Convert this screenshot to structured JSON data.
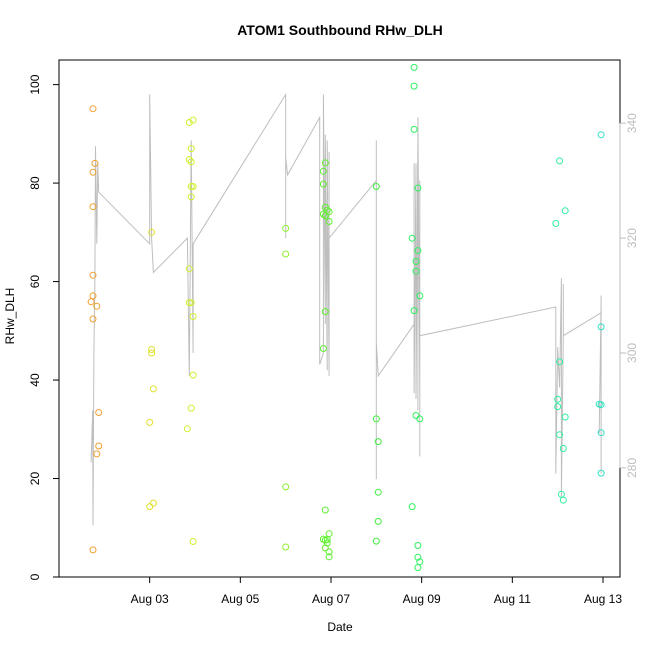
{
  "chart_data": {
    "type": "scatter",
    "title": "ATOM1 Southbound RHw_DLH",
    "xlabel": "Date",
    "ylabel": "RHw_DLH",
    "xlim": [
      "2025-08-01T00:00",
      "2025-08-13T09:00"
    ],
    "xticks": [
      {
        "x": "2025-08-03T00:00",
        "label": "Aug 03"
      },
      {
        "x": "2025-08-05T00:00",
        "label": "Aug 05"
      },
      {
        "x": "2025-08-07T00:00",
        "label": "Aug 07"
      },
      {
        "x": "2025-08-09T00:00",
        "label": "Aug 09"
      },
      {
        "x": "2025-08-11T00:00",
        "label": "Aug 11"
      },
      {
        "x": "2025-08-13T00:00",
        "label": "Aug 13"
      }
    ],
    "ylim": [
      0,
      105
    ],
    "yticks": [
      0,
      20,
      40,
      60,
      80,
      100
    ],
    "y2lim": [
      261,
      351
    ],
    "y2ticks": [
      280,
      300,
      320,
      340
    ],
    "grid": false,
    "legend": "none",
    "series": [
      {
        "color": "#f0a030",
        "points": [
          [
            "2025-08-01T18:00",
            95.1
          ],
          [
            "2025-08-01T18:00",
            82.2
          ],
          [
            "2025-08-01T19:00",
            84
          ],
          [
            "2025-08-01T18:00",
            75.2
          ],
          [
            "2025-08-01T18:00",
            61.3
          ],
          [
            "2025-08-01T18:00",
            57.1
          ],
          [
            "2025-08-01T17:00",
            55.9
          ],
          [
            "2025-08-01T20:00",
            55
          ],
          [
            "2025-08-01T18:00",
            52.4
          ],
          [
            "2025-08-01T21:00",
            33.4
          ],
          [
            "2025-08-01T21:00",
            26.6
          ],
          [
            "2025-08-01T20:00",
            25
          ],
          [
            "2025-08-01T18:00",
            5.5
          ]
        ]
      },
      {
        "color": "#e0e030",
        "points": [
          [
            "2025-08-03T01:00",
            70
          ],
          [
            "2025-08-03T01:00",
            46.2
          ],
          [
            "2025-08-03T01:00",
            45.5
          ],
          [
            "2025-08-03T02:00",
            38.2
          ],
          [
            "2025-08-03T00:00",
            31.4
          ],
          [
            "2025-08-03T00:00",
            14.3
          ],
          [
            "2025-08-03T02:00",
            15
          ]
        ]
      },
      {
        "color": "#d0f030",
        "points": [
          [
            "2025-08-03T21:00",
            92.3
          ],
          [
            "2025-08-03T23:00",
            92.8
          ],
          [
            "2025-08-03T22:00",
            87
          ],
          [
            "2025-08-03T21:00",
            84.8
          ],
          [
            "2025-08-03T22:00",
            84.3
          ],
          [
            "2025-08-03T22:00",
            79.3
          ],
          [
            "2025-08-03T23:00",
            79.3
          ],
          [
            "2025-08-03T22:00",
            77.2
          ],
          [
            "2025-08-03T21:00",
            62.6
          ],
          [
            "2025-08-03T21:00",
            55.7
          ],
          [
            "2025-08-03T22:00",
            55.7
          ],
          [
            "2025-08-03T23:00",
            52.9
          ],
          [
            "2025-08-03T23:00",
            41
          ],
          [
            "2025-08-03T22:00",
            34.3
          ],
          [
            "2025-08-03T20:00",
            30.1
          ],
          [
            "2025-08-03T23:00",
            7.2
          ]
        ]
      },
      {
        "color": "#90f030",
        "points": [
          [
            "2025-08-06T00:00",
            70.8
          ],
          [
            "2025-08-06T00:00",
            65.6
          ],
          [
            "2025-08-06T00:00",
            18.3
          ],
          [
            "2025-08-06T00:00",
            6.1
          ]
        ]
      },
      {
        "color": "#60f030",
        "points": [
          [
            "2025-08-06T21:00",
            84.1
          ],
          [
            "2025-08-06T20:00",
            82.4
          ],
          [
            "2025-08-06T20:00",
            79.8
          ],
          [
            "2025-08-06T21:00",
            75.1
          ],
          [
            "2025-08-06T22:00",
            74.5
          ],
          [
            "2025-08-06T23:00",
            74.2
          ],
          [
            "2025-08-06T20:00",
            73.7
          ],
          [
            "2025-08-06T21:00",
            73.4
          ],
          [
            "2025-08-06T23:00",
            72.2
          ],
          [
            "2025-08-06T21:00",
            53.9
          ],
          [
            "2025-08-06T20:00",
            46.4
          ],
          [
            "2025-08-06T21:00",
            13.6
          ],
          [
            "2025-08-06T23:00",
            8.8
          ],
          [
            "2025-08-06T20:00",
            7.7
          ],
          [
            "2025-08-06T22:00",
            7.6
          ],
          [
            "2025-08-06T21:00",
            7.5
          ],
          [
            "2025-08-06T22:00",
            6.9
          ],
          [
            "2025-08-06T21:00",
            5.9
          ],
          [
            "2025-08-06T23:00",
            5.1
          ],
          [
            "2025-08-06T23:00",
            4.1
          ]
        ]
      },
      {
        "color": "#40f040",
        "points": [
          [
            "2025-08-08T00:00",
            79.3
          ],
          [
            "2025-08-08T00:00",
            32.1
          ],
          [
            "2025-08-08T01:00",
            27.5
          ],
          [
            "2025-08-08T01:00",
            17.2
          ],
          [
            "2025-08-08T01:00",
            11.3
          ],
          [
            "2025-08-08T00:00",
            7.3
          ]
        ]
      },
      {
        "color": "#30f060",
        "points": [
          [
            "2025-08-08T20:00",
            103.5
          ],
          [
            "2025-08-08T20:00",
            99.7
          ],
          [
            "2025-08-08T20:00",
            90.9
          ],
          [
            "2025-08-08T22:00",
            79
          ],
          [
            "2025-08-08T19:00",
            68.8
          ],
          [
            "2025-08-08T22:00",
            66.3
          ],
          [
            "2025-08-08T21:00",
            64.1
          ],
          [
            "2025-08-08T21:00",
            62.1
          ],
          [
            "2025-08-08T23:00",
            57.1
          ],
          [
            "2025-08-08T20:00",
            54.1
          ],
          [
            "2025-08-08T21:00",
            32.8
          ],
          [
            "2025-08-08T23:00",
            32.1
          ],
          [
            "2025-08-08T19:00",
            14.3
          ],
          [
            "2025-08-08T22:00",
            6.4
          ],
          [
            "2025-08-08T22:00",
            4
          ],
          [
            "2025-08-08T23:00",
            3.1
          ],
          [
            "2025-08-08T22:00",
            1.9
          ]
        ]
      },
      {
        "color": "#30f0a0",
        "points": [
          [
            "2025-08-12T01:00",
            84.5
          ],
          [
            "2025-08-12T04:00",
            74.4
          ],
          [
            "2025-08-11T23:00",
            71.8
          ],
          [
            "2025-08-12T01:00",
            43.7
          ],
          [
            "2025-08-12T00:00",
            36.1
          ],
          [
            "2025-08-12T00:00",
            34.6
          ],
          [
            "2025-08-12T04:00",
            32.5
          ],
          [
            "2025-08-12T01:00",
            28.9
          ],
          [
            "2025-08-12T03:00",
            26.1
          ],
          [
            "2025-08-12T02:00",
            16.8
          ],
          [
            "2025-08-12T03:00",
            15.6
          ]
        ]
      },
      {
        "color": "#30e0c0",
        "points": [
          [
            "2025-08-12T23:00",
            89.8
          ],
          [
            "2025-08-12T23:00",
            50.8
          ],
          [
            "2025-08-12T23:00",
            35
          ],
          [
            "2025-08-12T22:00",
            35.1
          ],
          [
            "2025-08-12T23:00",
            29.3
          ],
          [
            "2025-08-12T23:00",
            21.1
          ]
        ]
      }
    ],
    "secondary_line": {
      "color": "#bebebe",
      "y2_range": [
        261,
        351
      ],
      "points": [
        [
          "2025-08-01T17:00",
          281
        ],
        [
          "2025-08-01T17:50",
          290
        ],
        [
          "2025-08-01T18:00",
          270
        ],
        [
          "2025-08-01T18:30",
          300
        ],
        [
          "2025-08-01T19:00",
          313
        ],
        [
          "2025-08-01T19:20",
          336
        ],
        [
          "2025-08-01T20:00",
          319
        ],
        [
          "2025-08-01T20:30",
          333
        ],
        [
          "2025-08-01T21:00",
          328
        ],
        [
          "2025-08-01T21:00",
          328
        ],
        [
          "2025-08-03T00:00",
          319
        ],
        [
          "2025-08-03T00:00",
          345
        ],
        [
          "2025-08-03T01:00",
          320
        ],
        [
          "2025-08-03T02:00",
          314
        ],
        [
          "2025-08-03T20:00",
          320
        ],
        [
          "2025-08-03T21:00",
          296
        ],
        [
          "2025-08-03T22:00",
          337
        ],
        [
          "2025-08-03T23:00",
          300
        ],
        [
          "2025-08-03T23:00",
          301
        ],
        [
          "2025-08-03T23:00",
          319
        ],
        [
          "2025-08-06T00:00",
          345
        ],
        [
          "2025-08-06T00:00",
          320
        ],
        [
          "2025-08-06T00:00",
          342
        ],
        [
          "2025-08-06T00:00",
          334
        ],
        [
          "2025-08-06T01:00",
          331
        ],
        [
          "2025-08-06T01:00",
          331
        ],
        [
          "2025-08-06T18:00",
          341
        ],
        [
          "2025-08-06T18:00",
          298
        ],
        [
          "2025-08-06T20:00",
          300
        ],
        [
          "2025-08-06T20:00",
          345
        ],
        [
          "2025-08-06T21:00",
          305
        ],
        [
          "2025-08-06T21:00",
          338
        ],
        [
          "2025-08-06T22:00",
          297
        ],
        [
          "2025-08-06T22:00",
          337
        ],
        [
          "2025-08-06T23:00",
          296
        ],
        [
          "2025-08-06T23:00",
          335
        ],
        [
          "2025-08-06T23:00",
          305
        ],
        [
          "2025-08-06T23:00",
          320
        ],
        [
          "2025-08-08T00:00",
          330
        ],
        [
          "2025-08-08T00:00",
          337
        ],
        [
          "2025-08-08T00:00",
          278
        ],
        [
          "2025-08-08T00:00",
          302
        ],
        [
          "2025-08-08T01:00",
          296
        ],
        [
          "2025-08-08T20:00",
          305
        ],
        [
          "2025-08-08T20:00",
          333
        ],
        [
          "2025-08-08T20:00",
          293
        ],
        [
          "2025-08-08T21:00",
          333
        ],
        [
          "2025-08-08T21:00",
          292
        ],
        [
          "2025-08-08T22:00",
          337
        ],
        [
          "2025-08-08T22:00",
          290
        ],
        [
          "2025-08-08T22:00",
          341
        ],
        [
          "2025-08-08T23:00",
          293
        ],
        [
          "2025-08-08T23:00",
          330
        ],
        [
          "2025-08-08T23:00",
          282
        ],
        [
          "2025-08-08T23:00",
          303
        ],
        [
          "2025-08-11T23:00",
          308
        ],
        [
          "2025-08-11T23:00",
          279
        ],
        [
          "2025-08-12T00:00",
          301
        ],
        [
          "2025-08-12T01:00",
          294
        ],
        [
          "2025-08-12T02:00",
          313
        ],
        [
          "2025-08-12T02:00",
          275
        ],
        [
          "2025-08-12T03:00",
          303
        ],
        [
          "2025-08-12T03:00",
          312
        ],
        [
          "2025-08-12T03:00",
          303
        ],
        [
          "2025-08-12T23:00",
          307
        ],
        [
          "2025-08-12T22:00",
          286
        ],
        [
          "2025-08-12T23:00",
          309
        ],
        [
          "2025-08-12T23:00",
          279
        ],
        [
          "2025-08-12T23:00",
          301
        ],
        [
          "2025-08-12T23:00",
          288
        ],
        [
          "2025-08-12T23:00",
          310
        ]
      ]
    }
  }
}
